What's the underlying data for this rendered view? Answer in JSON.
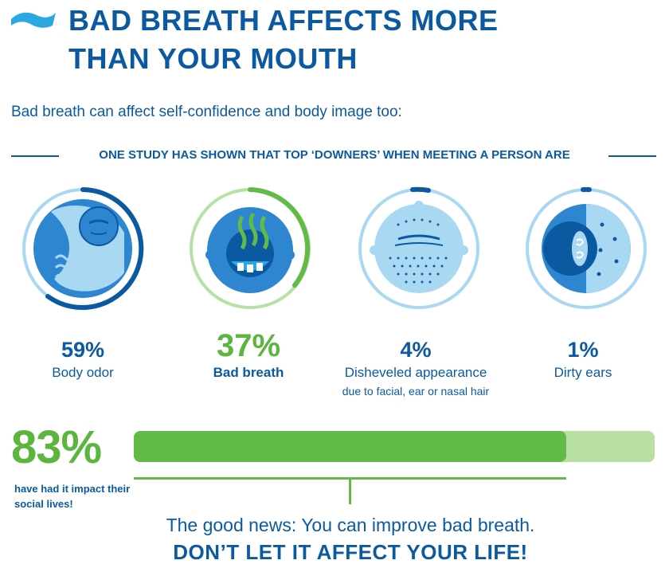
{
  "header": {
    "title_line1": "BAD BREATH AFFECTS MORE",
    "title_line2": "THAN YOUR MOUTH",
    "subtitle": "Bad breath can affect self-confidence and body image too:"
  },
  "study": {
    "heading": "ONE STUDY HAS SHOWN THAT TOP ‘DOWNERS’ WHEN MEETING A PERSON ARE"
  },
  "downers": [
    {
      "percent": "59%",
      "label": "Body odor",
      "sublabel": "",
      "value": 0.59,
      "icon": "body-odor-icon"
    },
    {
      "percent": "37%",
      "label": "Bad breath",
      "sublabel": "",
      "value": 0.37,
      "icon": "bad-breath-icon"
    },
    {
      "percent": "4%",
      "label": "Disheveled appearance",
      "sublabel": "due to facial, ear or nasal hair",
      "value": 0.04,
      "icon": "disheveled-face-icon"
    },
    {
      "percent": "1%",
      "label": "Dirty ears",
      "sublabel": "",
      "value": 0.01,
      "icon": "dirty-ear-icon"
    }
  ],
  "impact": {
    "percent": "83%",
    "text": "have had it impact their social lives!",
    "value": 0.83
  },
  "footer": {
    "good_news": "The good news: You can improve bad breath.",
    "cta": "DON’T LET IT AFFECT YOUR LIFE!"
  },
  "colors": {
    "navy": "#0b5aa1",
    "light_blue": "#a9d8f2",
    "mid_blue": "#2f86d0",
    "green": "#62bb46",
    "light_green": "#b9e0a4"
  }
}
